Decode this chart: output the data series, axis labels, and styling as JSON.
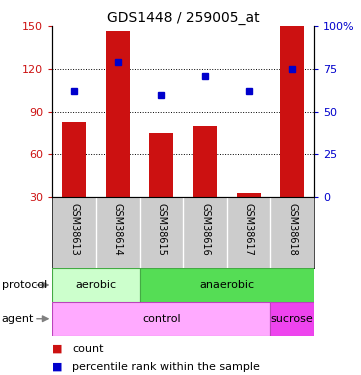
{
  "title": "GDS1448 / 259005_at",
  "samples": [
    "GSM38613",
    "GSM38614",
    "GSM38615",
    "GSM38616",
    "GSM38617",
    "GSM38618"
  ],
  "counts": [
    83,
    147,
    75,
    80,
    33,
    150
  ],
  "percentile_ranks": [
    62,
    79,
    60,
    71,
    62,
    75
  ],
  "ylim_left": [
    30,
    150
  ],
  "ylim_right": [
    0,
    100
  ],
  "yticks_left": [
    30,
    60,
    90,
    120,
    150
  ],
  "yticks_right": [
    0,
    25,
    50,
    75,
    100
  ],
  "bar_color": "#cc1111",
  "dot_color": "#0000cc",
  "grid_yticks": [
    60,
    90,
    120
  ],
  "aerobic_color": "#ccffcc",
  "anaerobic_color": "#55dd55",
  "control_color": "#ffaaff",
  "sucrose_color": "#ee44ee",
  "sample_bg_color": "#cccccc",
  "legend_count_color": "#cc1111",
  "legend_dot_color": "#0000cc",
  "aerobic_cols": 2,
  "anaerobic_cols": 4,
  "control_cols": 5,
  "sucrose_cols": 1
}
